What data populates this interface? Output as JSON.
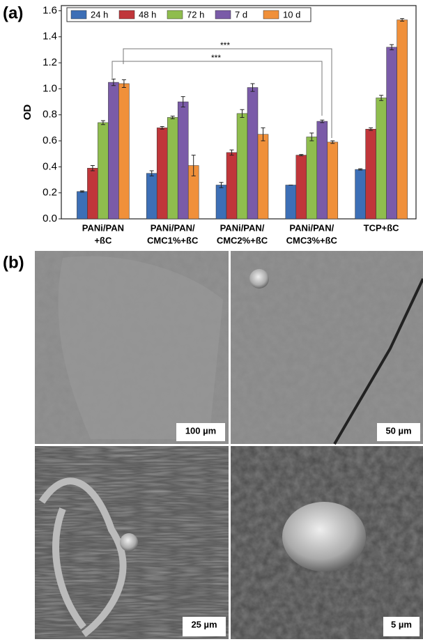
{
  "panel_labels": [
    "(a)",
    "(b)"
  ],
  "chart_data": {
    "type": "bar",
    "ylabel": "OD",
    "categories": [
      [
        "PANi/PAN",
        "+ßC"
      ],
      [
        "PANi/PAN/",
        "CMC1%+ßC"
      ],
      [
        "PANi/PAN/",
        "CMC2%+ßC"
      ],
      [
        "PANi/PAN/",
        "CMC3%+ßC"
      ],
      [
        "TCP+ßC"
      ]
    ],
    "series": [
      {
        "name": "24 h",
        "color": "#3d6fb6",
        "values": [
          0.21,
          0.35,
          0.26,
          0.26,
          0.38
        ],
        "errors": [
          0.005,
          0.02,
          0.02,
          0,
          0.005
        ]
      },
      {
        "name": "48 h",
        "color": "#c0363a",
        "values": [
          0.39,
          0.7,
          0.51,
          0.49,
          0.69
        ],
        "errors": [
          0.02,
          0.01,
          0.02,
          0.005,
          0.01
        ]
      },
      {
        "name": "72 h",
        "color": "#8fbd4e",
        "values": [
          0.74,
          0.78,
          0.81,
          0.63,
          0.93
        ],
        "errors": [
          0.015,
          0.01,
          0.03,
          0.03,
          0.02
        ]
      },
      {
        "name": "7 d",
        "color": "#7a5ba8",
        "values": [
          1.05,
          0.9,
          1.01,
          0.75,
          1.32
        ],
        "errors": [
          0.025,
          0.04,
          0.03,
          0.01,
          0.02
        ]
      },
      {
        "name": "10 d",
        "color": "#f0903a",
        "values": [
          1.04,
          0.41,
          0.65,
          0.59,
          1.53
        ],
        "errors": [
          0.03,
          0.08,
          0.05,
          0.01,
          0.01
        ]
      }
    ],
    "annotations": [
      "***",
      "***"
    ],
    "ylim": [
      0,
      1.64
    ],
    "yticks": [
      {
        "value": 0,
        "label": "0.0"
      },
      0.2,
      0.4,
      0.6,
      0.8,
      {
        "value": 1,
        "label": "1.0"
      },
      1.2,
      1.4,
      1.6
    ]
  },
  "images": [
    {
      "scale_bar": "100 µm"
    },
    {
      "scale_bar": "50 µm"
    },
    {
      "scale_bar": "25 µm"
    },
    {
      "scale_bar": "5 µm"
    }
  ]
}
